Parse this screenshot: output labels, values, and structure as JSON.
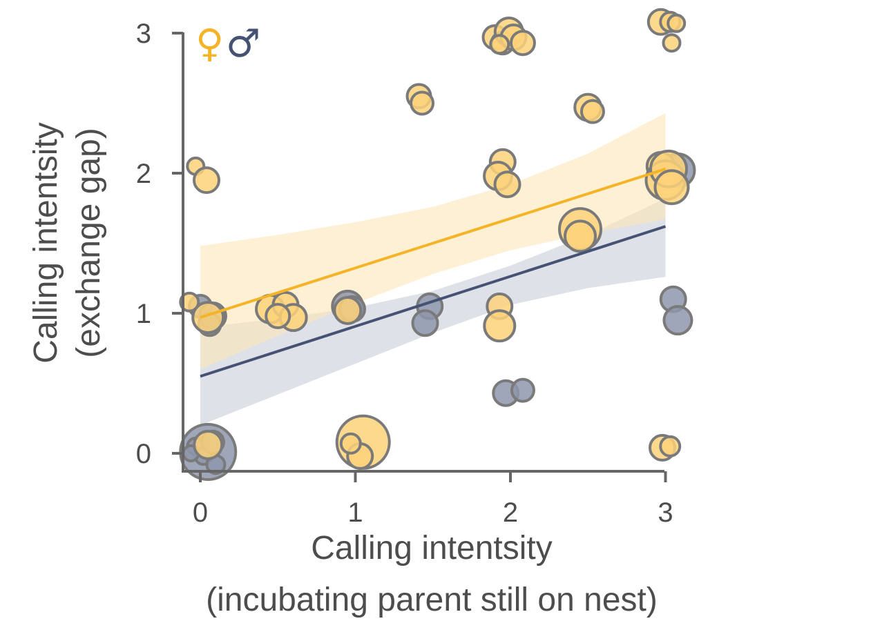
{
  "chart_data": {
    "type": "scatter",
    "xlabel_line1": "Calling intentsity",
    "xlabel_line2": "(incubating parent still on nest)",
    "ylabel_line1": "Calling intentsity",
    "ylabel_line2": "(exchange gap)",
    "x_ticks": [
      "0",
      "1",
      "2",
      "3"
    ],
    "y_ticks": [
      "0",
      "1",
      "2",
      "3"
    ],
    "xlim": [
      -0.12,
      3.15
    ],
    "ylim": [
      -0.1,
      3.05
    ],
    "legend": {
      "female_symbol": "♀",
      "male_symbol": "♂",
      "placement": "top-left"
    },
    "colors": {
      "female": "#f5b428",
      "female_fill": "#fdd27a",
      "female_band": "#fbe6b8",
      "male": "#465273",
      "male_fill": "#8e97ad",
      "male_band": "#c9cdd9",
      "point_stroke": "#7a7a7a",
      "axis": "#666666"
    },
    "series": [
      {
        "sex": "female",
        "fit": {
          "x": [
            0,
            3
          ],
          "y": [
            0.97,
            2.03
          ]
        },
        "ci": {
          "x": [
            0,
            0.5,
            1,
            1.5,
            2,
            2.5,
            3
          ],
          "lower": [
            0.6,
            0.84,
            1.07,
            1.28,
            1.45,
            1.57,
            1.67
          ],
          "upper": [
            1.48,
            1.56,
            1.65,
            1.76,
            1.92,
            2.14,
            2.43
          ]
        },
        "points": [
          {
            "x": 0.05,
            "y": 0.06,
            "s": 20
          },
          {
            "x": 1.05,
            "y": 0.08,
            "s": 38
          },
          {
            "x": 1.03,
            "y": -0.02,
            "s": 18
          },
          {
            "x": 0.97,
            "y": 0.07,
            "s": 14
          },
          {
            "x": 2.98,
            "y": 0.04,
            "s": 18
          },
          {
            "x": 3.03,
            "y": 0.05,
            "s": 14
          },
          {
            "x": 0.05,
            "y": 0.97,
            "s": 22
          },
          {
            "x": -0.07,
            "y": 1.08,
            "s": 13
          },
          {
            "x": 0.45,
            "y": 1.03,
            "s": 20
          },
          {
            "x": 0.55,
            "y": 1.06,
            "s": 18
          },
          {
            "x": 0.6,
            "y": 0.97,
            "s": 19
          },
          {
            "x": 0.5,
            "y": 0.98,
            "s": 17
          },
          {
            "x": 0.95,
            "y": 1.02,
            "s": 19
          },
          {
            "x": 1.93,
            "y": 1.05,
            "s": 18
          },
          {
            "x": 1.93,
            "y": 0.91,
            "s": 22
          },
          {
            "x": -0.03,
            "y": 2.05,
            "s": 12
          },
          {
            "x": 0.04,
            "y": 1.95,
            "s": 18
          },
          {
            "x": 1.95,
            "y": 2.08,
            "s": 18
          },
          {
            "x": 1.92,
            "y": 1.98,
            "s": 20
          },
          {
            "x": 1.98,
            "y": 1.92,
            "s": 18
          },
          {
            "x": 2.45,
            "y": 1.6,
            "s": 30
          },
          {
            "x": 2.45,
            "y": 1.55,
            "s": 22
          },
          {
            "x": 2.97,
            "y": 2.05,
            "s": 20
          },
          {
            "x": 3.0,
            "y": 1.95,
            "s": 28
          },
          {
            "x": 3.02,
            "y": 2.03,
            "s": 26
          },
          {
            "x": 3.04,
            "y": 1.9,
            "s": 24
          },
          {
            "x": 1.41,
            "y": 2.55,
            "s": 17
          },
          {
            "x": 1.43,
            "y": 2.5,
            "s": 16
          },
          {
            "x": 2.5,
            "y": 2.47,
            "s": 19
          },
          {
            "x": 2.53,
            "y": 2.44,
            "s": 16
          },
          {
            "x": 1.9,
            "y": 2.97,
            "s": 17
          },
          {
            "x": 1.95,
            "y": 2.93,
            "s": 16
          },
          {
            "x": 1.99,
            "y": 3.01,
            "s": 20
          },
          {
            "x": 2.02,
            "y": 2.97,
            "s": 18
          },
          {
            "x": 2.08,
            "y": 2.93,
            "s": 17
          },
          {
            "x": 1.93,
            "y": 2.92,
            "s": 13
          },
          {
            "x": 2.97,
            "y": 3.08,
            "s": 18
          },
          {
            "x": 3.03,
            "y": 3.08,
            "s": 14
          },
          {
            "x": 3.07,
            "y": 3.07,
            "s": 12
          },
          {
            "x": 3.04,
            "y": 2.93,
            "s": 12
          }
        ]
      },
      {
        "sex": "male",
        "fit": {
          "x": [
            0,
            3
          ],
          "y": [
            0.55,
            1.62
          ]
        },
        "ci": {
          "x": [
            0,
            0.5,
            1,
            1.5,
            2,
            2.5,
            3
          ],
          "lower": [
            0.2,
            0.42,
            0.64,
            0.86,
            1.06,
            1.18,
            1.26
          ],
          "upper": [
            0.9,
            0.96,
            1.04,
            1.16,
            1.34,
            1.56,
            1.82
          ]
        },
        "points": [
          {
            "x": 0.05,
            "y": 0.01,
            "s": 40
          },
          {
            "x": -0.03,
            "y": 0.05,
            "s": 12
          },
          {
            "x": 0.02,
            "y": -0.02,
            "s": 12
          },
          {
            "x": 0.08,
            "y": 0.08,
            "s": 16
          },
          {
            "x": 0.1,
            "y": -0.08,
            "s": 13
          },
          {
            "x": -0.06,
            "y": 0.0,
            "s": 11
          },
          {
            "x": 0.0,
            "y": 1.05,
            "s": 16
          },
          {
            "x": 0.08,
            "y": 0.98,
            "s": 19
          },
          {
            "x": 0.06,
            "y": 0.92,
            "s": 16
          },
          {
            "x": 0.95,
            "y": 1.05,
            "s": 22
          },
          {
            "x": 0.98,
            "y": 1.03,
            "s": 18
          },
          {
            "x": 1.48,
            "y": 1.05,
            "s": 18
          },
          {
            "x": 1.45,
            "y": 0.93,
            "s": 18
          },
          {
            "x": 1.97,
            "y": 0.43,
            "s": 18
          },
          {
            "x": 2.08,
            "y": 0.45,
            "s": 16
          },
          {
            "x": 3.05,
            "y": 1.1,
            "s": 18
          },
          {
            "x": 3.08,
            "y": 0.95,
            "s": 20
          },
          {
            "x": 3.08,
            "y": 2.02,
            "s": 24
          }
        ]
      }
    ]
  }
}
